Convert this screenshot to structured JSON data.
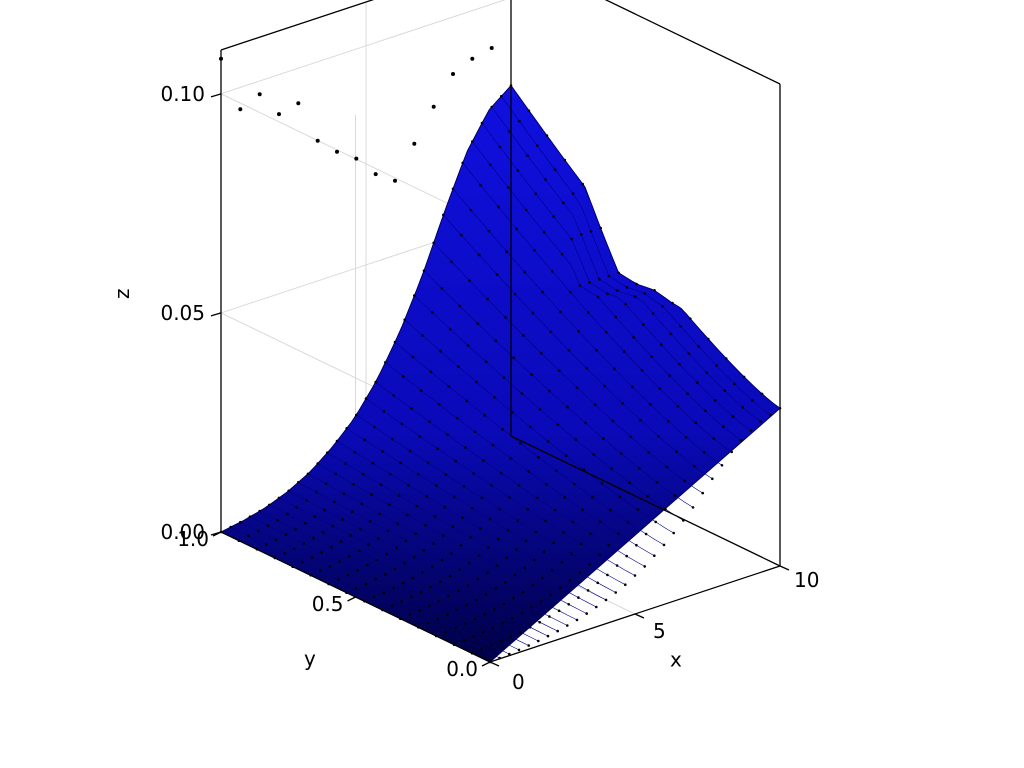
{
  "chart_data": {
    "type": "surface3d",
    "title": "",
    "xlabel": "x",
    "ylabel": "y",
    "zlabel": "z",
    "xlim": [
      0,
      10
    ],
    "ylim": [
      0,
      1
    ],
    "zlim": [
      0,
      0.11
    ],
    "xticks": [
      "0",
      "5",
      "10"
    ],
    "yticks": [
      "0.0",
      "0.5",
      "1.0"
    ],
    "zticks": [
      "0.00",
      "0.05",
      "0.10"
    ],
    "xtick_values": [
      0,
      5,
      10
    ],
    "ytick_values": [
      0,
      0.5,
      1
    ],
    "ztick_values": [
      0,
      0.05,
      0.1
    ],
    "grid": true,
    "surface_color": "#0000cc",
    "marker_color": "#000000",
    "z_edge_x_max": [
      0,
      0.0009,
      0.0022,
      0.0042,
      0.007,
      0.011,
      0.016,
      0.023,
      0.032,
      0.043,
      0.056,
      0.068,
      0.076,
      0.08
    ],
    "peak_z_y_max": [
      0.108,
      0.095,
      0.097,
      0.091,
      0.092,
      0.082,
      0.078,
      0.075,
      0.07,
      0.067,
      0.074,
      0.081,
      0.087,
      0.089,
      0.09,
      0.101
    ]
  }
}
